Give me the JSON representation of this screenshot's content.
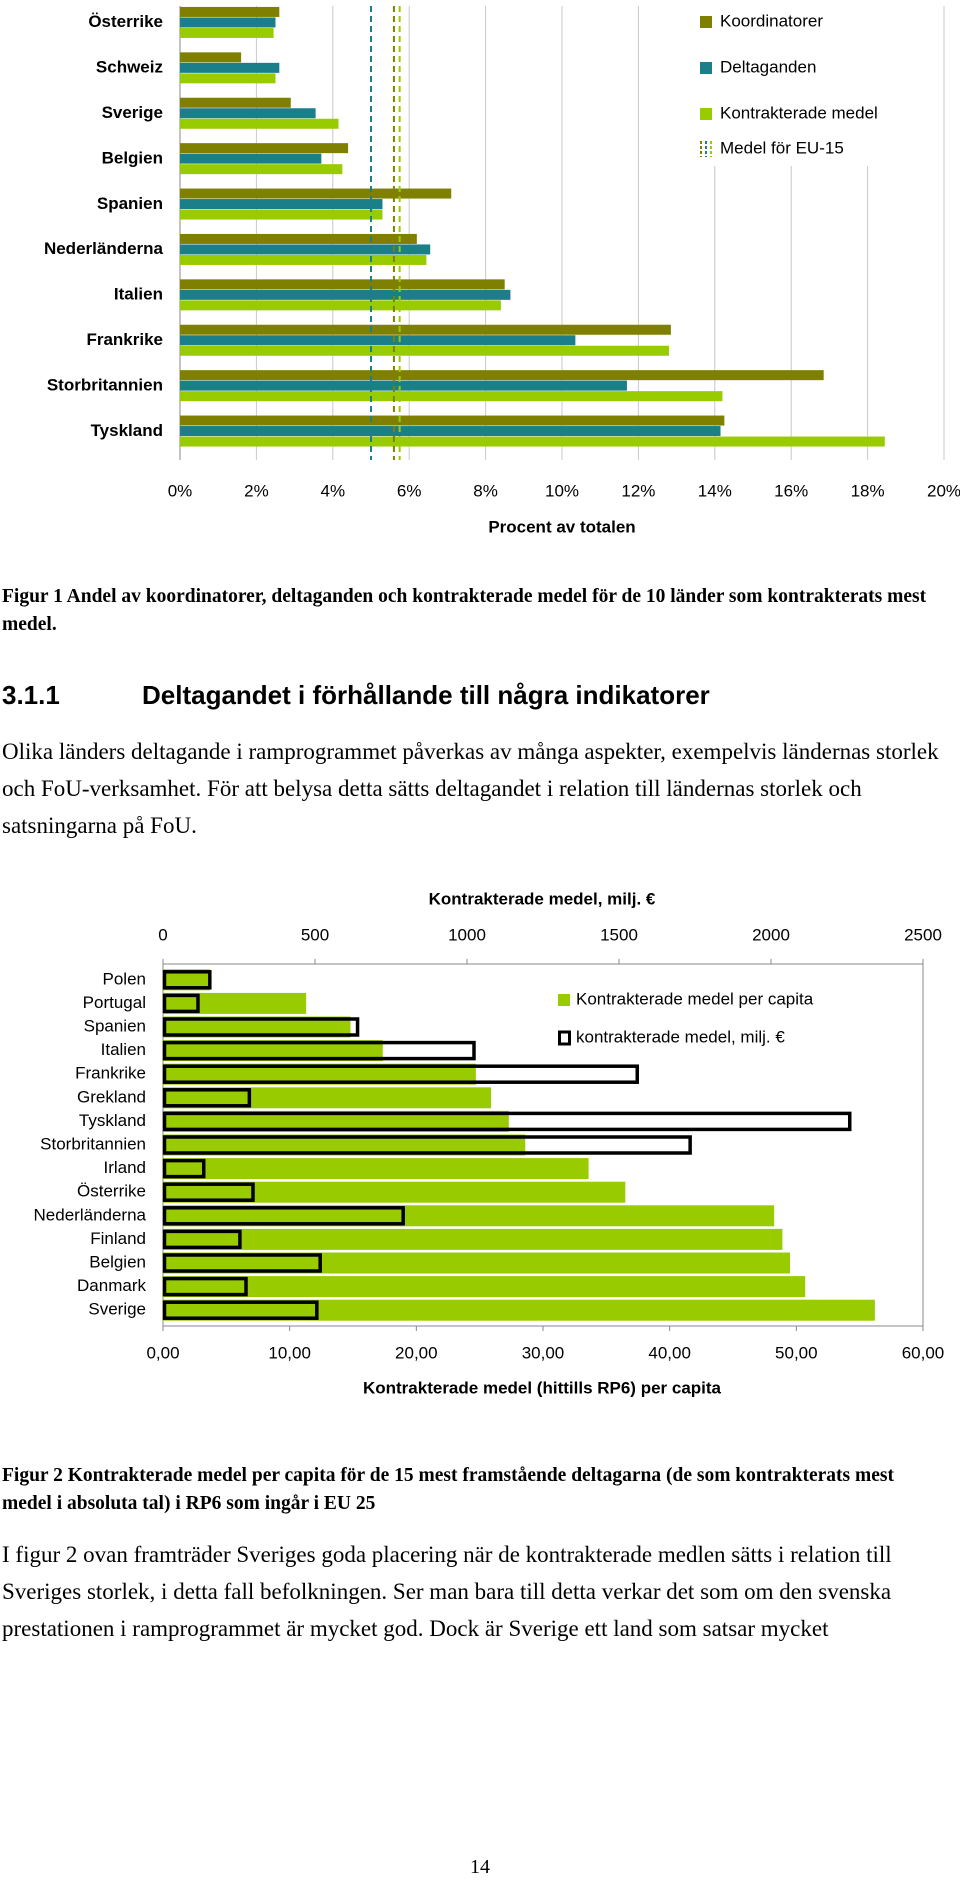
{
  "chart_data": [
    {
      "type": "bar",
      "orientation": "horizontal",
      "categories": [
        "Österrike",
        "Schweiz",
        "Sverige",
        "Belgien",
        "Spanien",
        "Nederländerna",
        "Italien",
        "Frankrike",
        "Storbritannien",
        "Tyskland"
      ],
      "series": [
        {
          "name": "Koordinatorer",
          "color": "#7f8000",
          "values": [
            2.6,
            1.6,
            2.9,
            4.4,
            7.1,
            6.2,
            8.5,
            12.85,
            16.85,
            14.25
          ]
        },
        {
          "name": "Deltaganden",
          "color": "#1a7f88",
          "values": [
            2.5,
            2.6,
            3.55,
            3.7,
            5.3,
            6.55,
            8.65,
            10.35,
            11.7,
            14.15
          ]
        },
        {
          "name": "Kontrakterade medel",
          "color": "#99cc00",
          "values": [
            2.45,
            2.5,
            4.15,
            4.25,
            5.3,
            6.45,
            8.4,
            12.8,
            14.2,
            18.45
          ]
        }
      ],
      "reference_lines": {
        "name": "Medel för EU-15",
        "values": [
          5.6,
          5.0,
          5.75
        ]
      },
      "xlim": [
        0,
        20
      ],
      "xticks": [
        {
          "value": 0,
          "label": "0%"
        },
        {
          "value": 2,
          "label": "2%"
        },
        {
          "value": 4,
          "label": "4%"
        },
        {
          "value": 6,
          "label": "6%"
        },
        {
          "value": 8,
          "label": "8%"
        },
        {
          "value": 10,
          "label": "10%"
        },
        {
          "value": 12,
          "label": "12%"
        },
        {
          "value": 14,
          "label": "14%"
        },
        {
          "value": 16,
          "label": "16%"
        },
        {
          "value": 18,
          "label": "18%"
        },
        {
          "value": 20,
          "label": "20%"
        }
      ],
      "xlabel": "Procent av totalen",
      "grid": true,
      "legend": "top-right"
    },
    {
      "type": "bar",
      "orientation": "horizontal",
      "categories": [
        "Polen",
        "Portugal",
        "Spanien",
        "Italien",
        "Frankrike",
        "Grekland",
        "Tyskland",
        "Storbritannien",
        "Irland",
        "Österrike",
        "Nederländerna",
        "Finland",
        "Belgien",
        "Danmark",
        "Sverige"
      ],
      "series": [
        {
          "name": "Kontrakterade medel per capita",
          "color": "#99cc00",
          "values": [
            3.7,
            11.3,
            14.8,
            17.35,
            24.7,
            25.9,
            27.3,
            28.6,
            33.6,
            36.5,
            48.25,
            48.9,
            49.5,
            50.7,
            56.2
          ]
        },
        {
          "name": "kontrakterade medel, milj. €",
          "color": "#000000",
          "axis": "x2",
          "values": [
            154,
            115,
            640,
            1023,
            1560,
            284,
            2259,
            1734,
            134,
            296,
            790,
            253,
            517,
            273,
            506
          ]
        }
      ],
      "xlim": [
        0,
        60
      ],
      "xticks": [
        {
          "value": 0,
          "label": "0,00"
        },
        {
          "value": 10,
          "label": "10,00"
        },
        {
          "value": 20,
          "label": "20,00"
        },
        {
          "value": 30,
          "label": "30,00"
        },
        {
          "value": 40,
          "label": "40,00"
        },
        {
          "value": 50,
          "label": "50,00"
        },
        {
          "value": 60,
          "label": "60,00"
        }
      ],
      "x2lim": [
        0,
        2500
      ],
      "x2ticks": [
        0,
        500,
        1000,
        1500,
        2000,
        2500
      ],
      "xlabel": "Kontrakterade medel (hittills RP6) per capita",
      "x2label": "Kontrakterade medel, milj. €",
      "legend": "top-right"
    }
  ],
  "figure1_caption": "Figur 1 Andel av koordinatorer, deltaganden och kontrakterade medel för de 10 länder som kontrakterats mest medel.",
  "section": {
    "number": "3.1.1",
    "title": "Deltagandet i förhållande till några indikatorer"
  },
  "paragraph1": "Olika länders deltagande i ramprogrammet påverkas av många aspekter, exempelvis ländernas storlek och FoU-verksamhet. För att belysa detta sätts deltagandet i relation till ländernas storlek och satsningarna på FoU.",
  "figure2_caption": "Figur 2 Kontrakterade medel per capita för de 15 mest framstående deltagarna (de som kontrakterats mest medel i absoluta tal) i RP6 som ingår i EU 25",
  "paragraph2": "I figur 2 ovan framträder Sveriges goda placering när de kontrakterade medlen sätts i relation till Sveriges storlek, i detta fall befolkningen. Ser man bara till detta verkar det som om den svenska prestationen i ramprogrammet är mycket god. Dock är Sverige ett land som satsar mycket",
  "page_number": "14"
}
